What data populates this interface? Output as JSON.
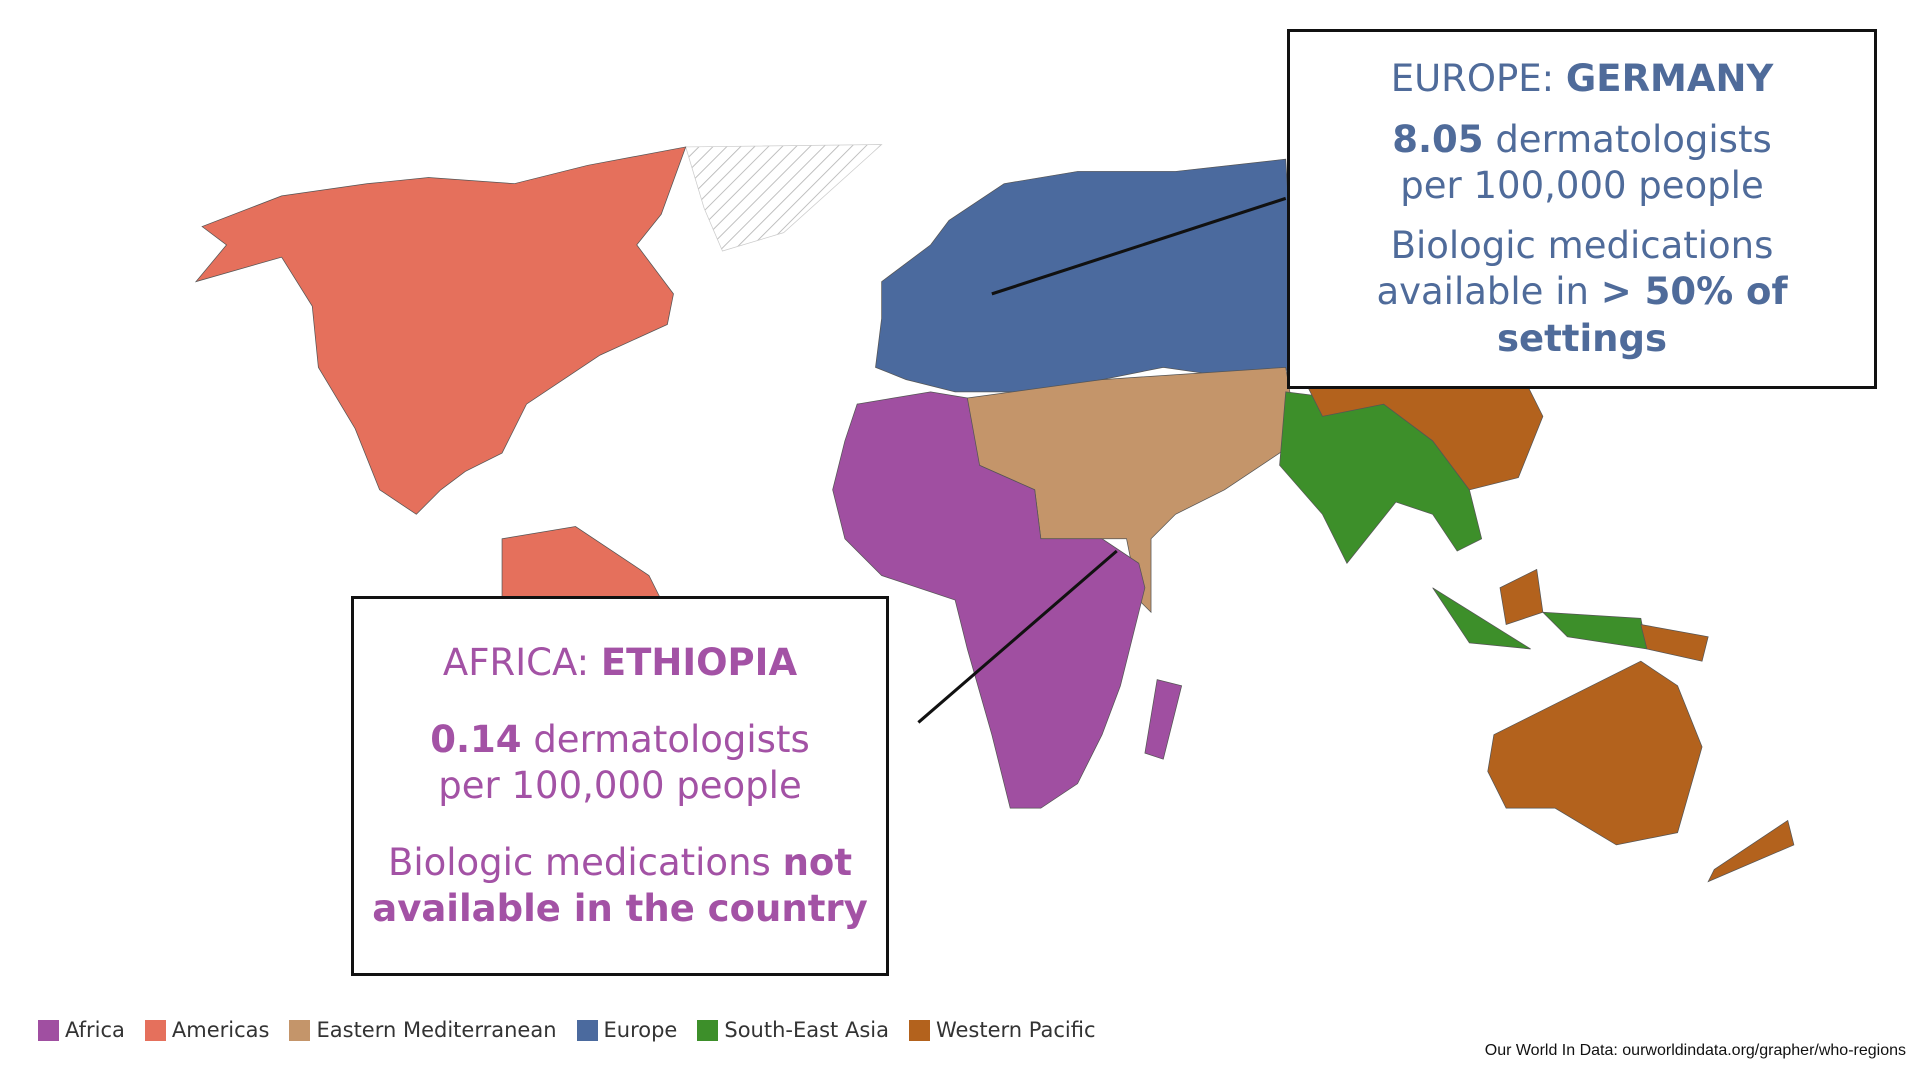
{
  "callouts": [
    {
      "region": "EUROPE:",
      "country": "GERMANY",
      "stat": "8.05",
      "stat_text": "dermatologists per 100,000 people",
      "note": "Biologic medications available in",
      "note_bold": "> 50% of settings",
      "color": "#4f6b9a"
    },
    {
      "region": "AFRICA:",
      "country": "ETHIOPIA",
      "stat": "0.14",
      "stat_text": "dermatologists per 100,000 people",
      "note": "Biologic medications",
      "note_bold": "not available in the country",
      "color": "#a352a5"
    }
  ],
  "legend": [
    {
      "name": "Africa",
      "color": "#a04fa1"
    },
    {
      "name": "Americas",
      "color": "#e5705c"
    },
    {
      "name": "Eastern Mediterranean",
      "color": "#c4956a"
    },
    {
      "name": "Europe",
      "color": "#4b6a9e"
    },
    {
      "name": "South-East Asia",
      "color": "#3d8f2a"
    },
    {
      "name": "Western Pacific",
      "color": "#b3621d"
    }
  ],
  "source": "Our World In Data: ourworldindata.org/grapher/who-regions"
}
